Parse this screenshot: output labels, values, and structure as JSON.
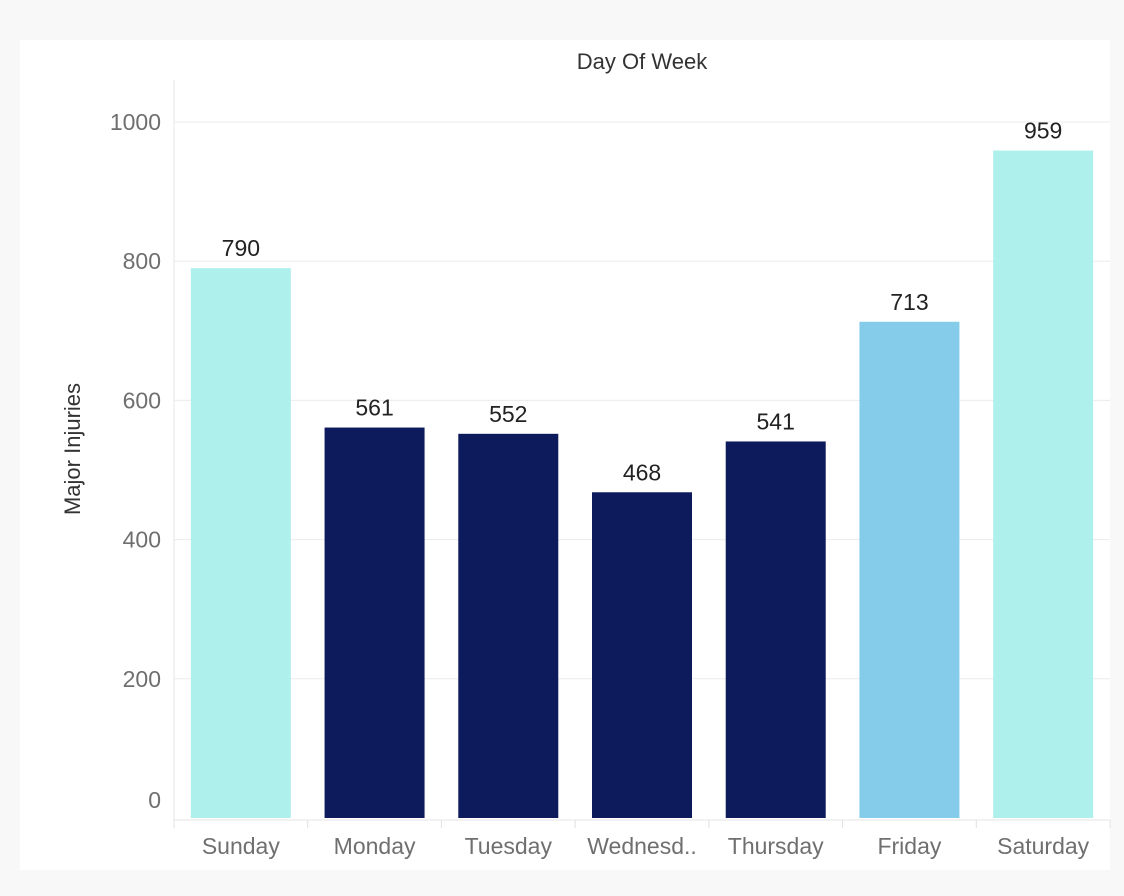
{
  "chart_data": {
    "type": "bar",
    "title": "",
    "xlabel": "Day Of Week",
    "ylabel": "Major Injuries",
    "categories": [
      "Sunday",
      "Monday",
      "Tuesday",
      "Wednesd..",
      "Thursday",
      "Friday",
      "Saturday"
    ],
    "values": [
      790,
      561,
      552,
      468,
      541,
      713,
      959
    ],
    "bar_colors": [
      "#aef0ec",
      "#0d1b5c",
      "#0d1b5c",
      "#0d1b5c",
      "#0d1b5c",
      "#85cbea",
      "#aef0ec"
    ],
    "ylim": [
      0,
      1000
    ],
    "yticks": [
      0,
      200,
      400,
      600,
      800,
      1000
    ],
    "grid": true,
    "legend": "none"
  }
}
